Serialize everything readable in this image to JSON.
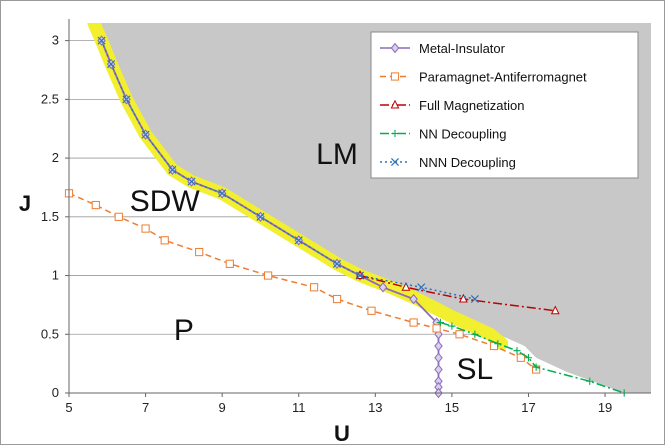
{
  "chart_data": {
    "type": "line",
    "title": "",
    "xlabel": "U",
    "ylabel": "J",
    "xlim": [
      5,
      20.2
    ],
    "ylim": [
      0,
      3.15
    ],
    "xticks": [
      5,
      7,
      9,
      11,
      13,
      15,
      17,
      19
    ],
    "yticks": [
      0,
      0.5,
      1,
      1.5,
      2,
      2.5,
      3
    ],
    "ytick_labels": [
      "0",
      "0.5",
      "1",
      "1.5",
      "2",
      "2.5",
      "3"
    ],
    "grid": "horizontal",
    "legend_position": "top-right",
    "background_region": {
      "color": "#c8c8c8",
      "note_boundary": [
        [
          5.7,
          3.15
        ],
        [
          5.85,
          3.0
        ],
        [
          6.1,
          2.8
        ],
        [
          6.5,
          2.5
        ],
        [
          7.0,
          2.2
        ],
        [
          7.7,
          1.9
        ],
        [
          8.2,
          1.8
        ],
        [
          9.0,
          1.7
        ],
        [
          10.0,
          1.5
        ],
        [
          11.0,
          1.3
        ],
        [
          12.0,
          1.1
        ],
        [
          12.6,
          1.0
        ],
        [
          13.4,
          0.9
        ],
        [
          14.1,
          0.8
        ],
        [
          15.0,
          0.65
        ],
        [
          16.0,
          0.53
        ],
        [
          16.9,
          0.4
        ],
        [
          17.2,
          0.3
        ],
        [
          18.0,
          0.18
        ],
        [
          19.5,
          0.0
        ],
        [
          20.2,
          0.0
        ]
      ]
    },
    "highlight": {
      "color": "#f2ef2e",
      "x": [
        5.65,
        5.85,
        6.1,
        6.5,
        7.0,
        7.7,
        8.2,
        9.0,
        10.0,
        11.0,
        12.0,
        12.6,
        13.4,
        14.1,
        15.0,
        16.0,
        16.3
      ],
      "y": [
        3.15,
        3.0,
        2.8,
        2.5,
        2.2,
        1.9,
        1.8,
        1.7,
        1.5,
        1.3,
        1.1,
        1.0,
        0.9,
        0.8,
        0.65,
        0.5,
        0.42
      ]
    },
    "region_labels": [
      {
        "text": "LM",
        "x": 12.0,
        "y": 1.95
      },
      {
        "text": "SDW",
        "x": 7.5,
        "y": 1.55
      },
      {
        "text": "P",
        "x": 8.0,
        "y": 0.45
      },
      {
        "text": "SL",
        "x": 15.6,
        "y": 0.12
      }
    ],
    "series": [
      {
        "name": "Metal-Insulator",
        "color": "#8c6bbd",
        "dash": "solid",
        "marker": "diamond",
        "x": [
          5.85,
          6.1,
          6.5,
          7.0,
          7.7,
          8.2,
          9.0,
          10.0,
          11.0,
          12.0,
          12.6,
          13.2,
          14.0,
          14.6,
          14.65,
          14.65,
          14.65,
          14.65,
          14.65,
          14.65,
          14.65
        ],
        "y": [
          3.0,
          2.8,
          2.5,
          2.2,
          1.9,
          1.8,
          1.7,
          1.5,
          1.3,
          1.1,
          1.0,
          0.9,
          0.8,
          0.6,
          0.5,
          0.4,
          0.3,
          0.2,
          0.1,
          0.05,
          0.0
        ]
      },
      {
        "name": "Paramagnet-Antiferromagnet",
        "color": "#ed7d31",
        "dash": "6,4",
        "marker": "square",
        "x": [
          5.0,
          5.7,
          6.3,
          7.0,
          7.5,
          8.4,
          9.2,
          10.2,
          11.4,
          12.0,
          12.9,
          14.0,
          14.6,
          15.2,
          16.1,
          16.8,
          17.2
        ],
        "y": [
          1.7,
          1.6,
          1.5,
          1.4,
          1.3,
          1.2,
          1.1,
          1.0,
          0.9,
          0.8,
          0.7,
          0.6,
          0.55,
          0.5,
          0.4,
          0.3,
          0.2
        ]
      },
      {
        "name": "Full Magnetization",
        "color": "#c00000",
        "dash": "9,3,2,3",
        "marker": "triangle",
        "x": [
          12.6,
          13.8,
          15.3,
          17.7
        ],
        "y": [
          1.0,
          0.9,
          0.8,
          0.7
        ]
      },
      {
        "name": "NN Decoupling",
        "color": "#00b050",
        "dash": "9,3,2,3",
        "marker": "plus",
        "x": [
          14.7,
          15.0,
          15.6,
          16.2,
          16.7,
          17.0,
          17.2,
          18.6,
          19.5
        ],
        "y": [
          0.6,
          0.57,
          0.5,
          0.42,
          0.36,
          0.3,
          0.22,
          0.1,
          0.0
        ]
      },
      {
        "name": "NNN Decoupling",
        "color": "#2e74b5",
        "dash": "2,3",
        "marker": "x",
        "x": [
          5.85,
          6.1,
          6.5,
          7.0,
          7.7,
          8.2,
          9.0,
          10.0,
          11.0,
          12.0,
          12.6,
          14.2,
          15.6
        ],
        "y": [
          3.0,
          2.8,
          2.5,
          2.2,
          1.9,
          1.8,
          1.7,
          1.5,
          1.3,
          1.1,
          1.0,
          0.9,
          0.8
        ]
      }
    ]
  }
}
